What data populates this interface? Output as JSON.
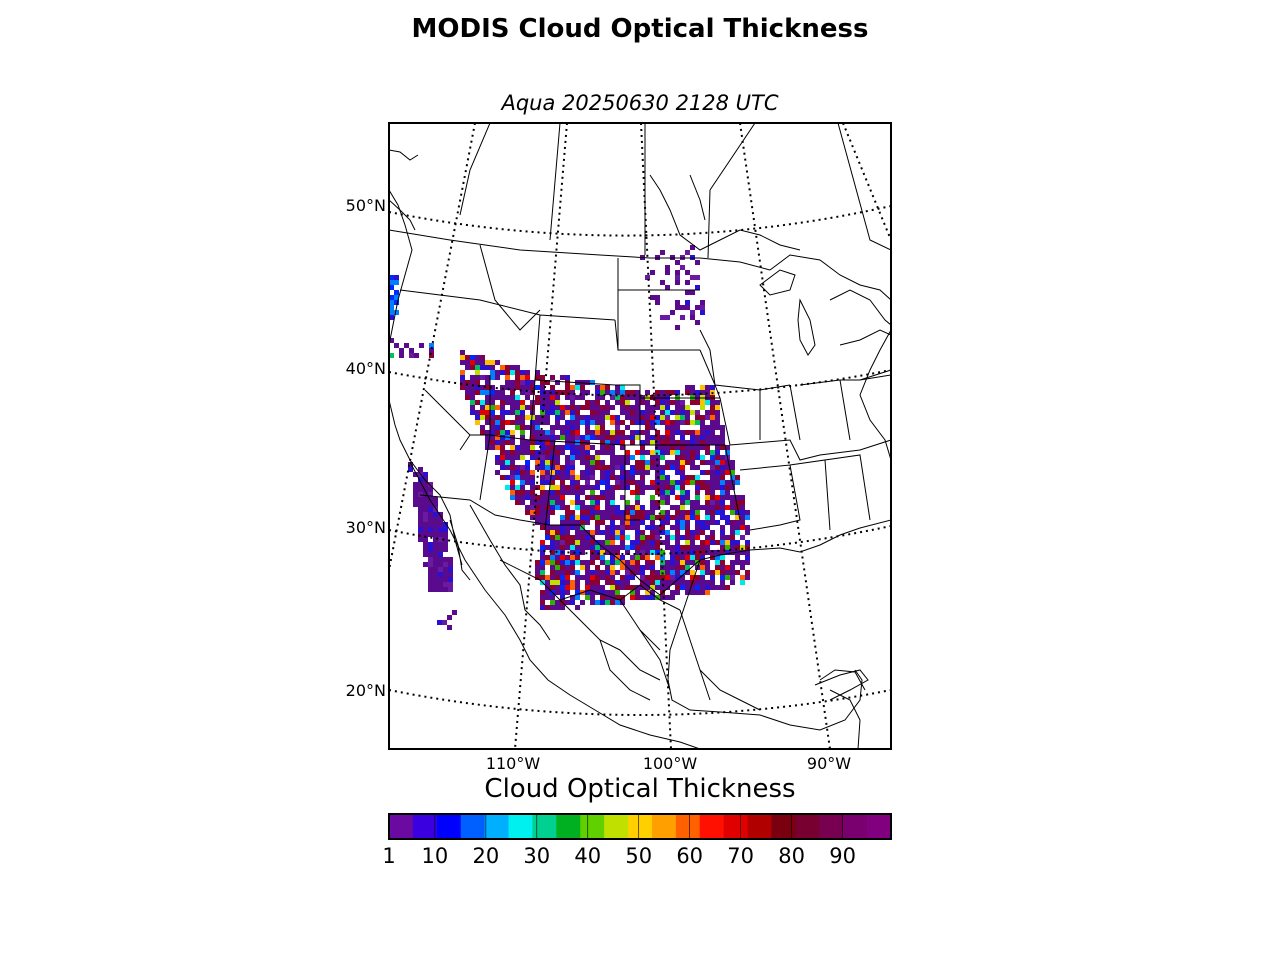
{
  "title": "MODIS Cloud Optical Thickness",
  "subtitle": "Aqua 20250630 2128 UTC",
  "lat_labels": [
    "50°N",
    "40°N",
    "30°N",
    "20°N"
  ],
  "lon_labels": [
    "110°W",
    "100°W",
    "90°W"
  ],
  "colorbar": {
    "title": "Cloud Optical Thickness",
    "ticks": [
      "1",
      "10",
      "20",
      "30",
      "40",
      "50",
      "60",
      "70",
      "80",
      "90"
    ],
    "colors": [
      "#6a0aa0",
      "#3a00e0",
      "#0000ff",
      "#0060ff",
      "#00b0ff",
      "#00f0f0",
      "#00d090",
      "#00b020",
      "#60d000",
      "#c0e000",
      "#ffd000",
      "#ffa000",
      "#ff6000",
      "#ff1000",
      "#e00000",
      "#b00000",
      "#7a0010",
      "#780030",
      "#780050",
      "#7a0070",
      "#800080"
    ]
  },
  "map_colors": {
    "outline": "#000000",
    "grid": "#000000",
    "cloud_palette": [
      "#5a0a8c",
      "#6a1aa0",
      "#2a10d0",
      "#0028ff",
      "#0080ff",
      "#00e8e8",
      "#00c060",
      "#30b000",
      "#c0e000",
      "#ffc000",
      "#ff6000",
      "#e00000",
      "#8a0030",
      "#7a0060"
    ]
  }
}
